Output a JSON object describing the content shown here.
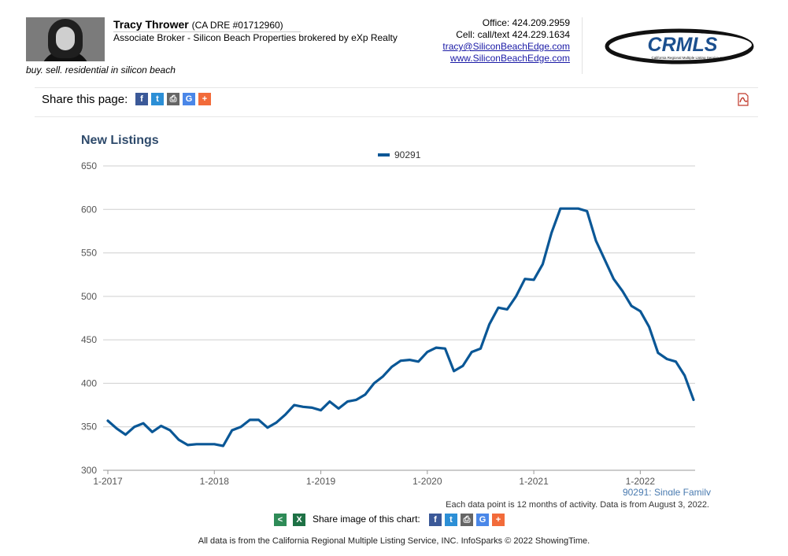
{
  "agent": {
    "name": "Tracy Thrower",
    "dre": "(CA DRE #01712960)",
    "title": "Associate Broker - Silicon Beach Properties brokered by eXp Realty",
    "tagline": "buy. sell. residential in silicon beach"
  },
  "contact": {
    "office": "Office: 424.209.2959",
    "cell": "Cell: call/text 424.229.1634",
    "email": "tracy@SiliconBeachEdge.com",
    "website": "www.SiliconBeachEdge.com"
  },
  "logo": {
    "text": "CRMLS",
    "subtext": "California Regional Multiple Listing Service, Inc.",
    "color": "#1b4f8e"
  },
  "share_bar": {
    "label": "Share this page:",
    "icons": [
      "facebook-icon",
      "twitter-icon",
      "print-icon",
      "google-icon",
      "plus-icon"
    ],
    "pdf_icon": "pdf-icon"
  },
  "chart_data": {
    "type": "line",
    "title": "New Listings",
    "legend_position": "top-center",
    "series": [
      {
        "name": "90291",
        "color": "#0a5796",
        "values": [
          357,
          348,
          341,
          350,
          354,
          344,
          351,
          346,
          335,
          329,
          330,
          330,
          330,
          328,
          346,
          350,
          358,
          358,
          349,
          355,
          364,
          375,
          373,
          372,
          369,
          379,
          371,
          379,
          381,
          387,
          400,
          408,
          419,
          426,
          427,
          425,
          436,
          441,
          440,
          414,
          420,
          436,
          440,
          468,
          487,
          485,
          500,
          520,
          519,
          537,
          573,
          601,
          601,
          601,
          598,
          564,
          542,
          520,
          506,
          489,
          483,
          465,
          435,
          428,
          425,
          409,
          381
        ]
      }
    ],
    "x_start": "2017-01",
    "x_interval": "1 month",
    "x_tick_labels": [
      "1-2017",
      "1-2018",
      "1-2019",
      "1-2020",
      "1-2021",
      "1-2022"
    ],
    "y_ticks": [
      300,
      350,
      400,
      450,
      500,
      550,
      600,
      650
    ],
    "ylim": [
      300,
      650
    ],
    "grid": true,
    "series_note": "90291: Single Family",
    "footnote": "Each data point is 12 months of activity. Data is from August 3, 2022."
  },
  "share_image": {
    "label": "Share image of this chart:",
    "icons": [
      "share-icon",
      "excel-icon",
      "facebook-icon",
      "twitter-icon",
      "print-icon",
      "google-icon",
      "plus-icon"
    ]
  },
  "footer": {
    "text": "All data is from the California Regional Multiple Listing Service, INC. InfoSparks © 2022 ShowingTime."
  }
}
